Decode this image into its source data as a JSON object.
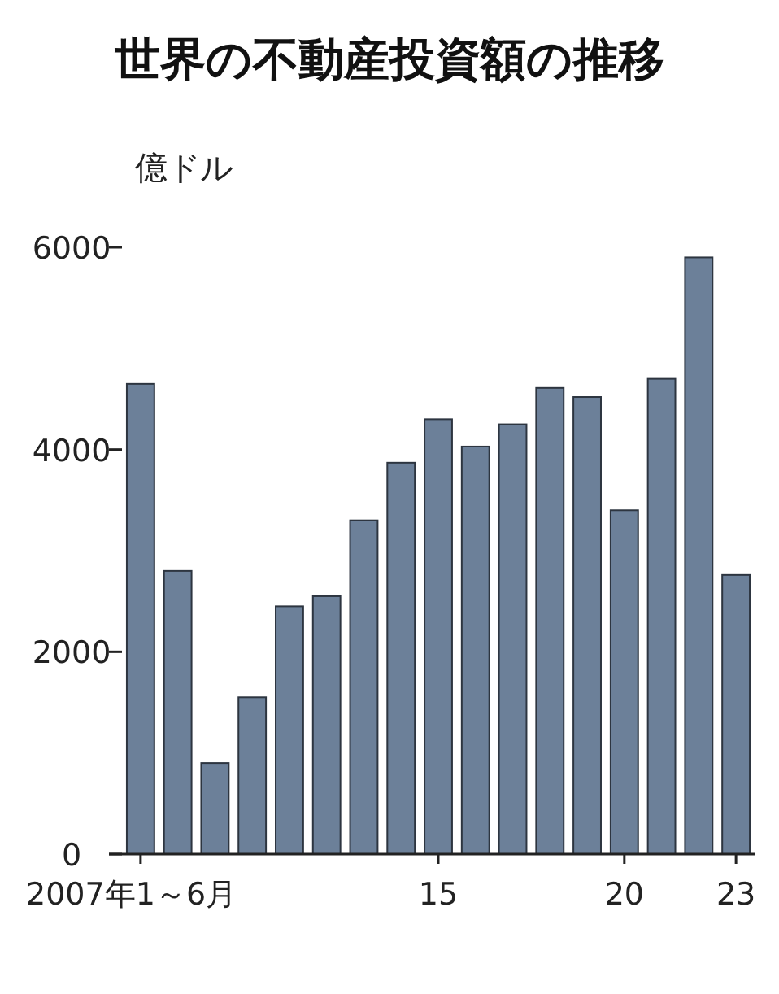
{
  "chart_data": {
    "type": "bar",
    "title": "世界の不動産投資額の推移",
    "ylabel": "億ドル",
    "categories": [
      "2007年1～6月",
      null,
      null,
      null,
      null,
      null,
      null,
      null,
      "15",
      null,
      null,
      null,
      null,
      "20",
      null,
      null,
      "23"
    ],
    "values": [
      4650,
      2800,
      900,
      1550,
      2450,
      2550,
      3300,
      3870,
      4300,
      4030,
      4250,
      4610,
      4520,
      3400,
      4700,
      5900,
      2760
    ],
    "color": "#6c8099",
    "ylim": [
      0,
      6000
    ],
    "yticks": [
      0,
      2000,
      4000,
      6000
    ]
  }
}
